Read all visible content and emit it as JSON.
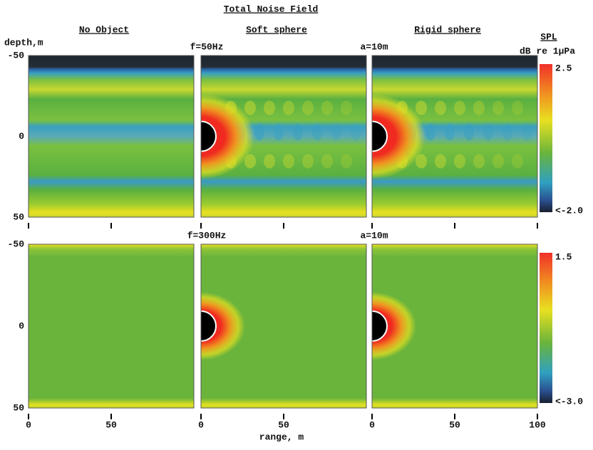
{
  "title": "Total Noise Field",
  "columns": [
    "No Object",
    "Soft sphere",
    "Rigid sphere"
  ],
  "y_label": "depth,m",
  "x_label": "range, m",
  "colorbar_title": "SPL",
  "colorbar_unit": "dB re 1µPa",
  "xlim": [
    0,
    100
  ],
  "xticks": [
    0,
    50,
    100
  ],
  "rows": [
    {
      "freq": "f=50Hz",
      "radius": "a=10m",
      "ylim": [
        -50,
        50
      ],
      "yticks": [
        -50,
        0,
        50
      ],
      "clim": [
        -2,
        2.5
      ],
      "cticks": [
        2.5,
        {
          "value": -2,
          "label": "<-2.0"
        }
      ]
    },
    {
      "freq": "f=300Hz",
      "radius": "a=10m",
      "ylim": [
        -50,
        50
      ],
      "yticks": [
        -50,
        0,
        50
      ],
      "clim": [
        -3,
        1.5
      ],
      "cticks": [
        1.5,
        {
          "value": -3,
          "label": "<-3.0"
        }
      ]
    }
  ]
}
